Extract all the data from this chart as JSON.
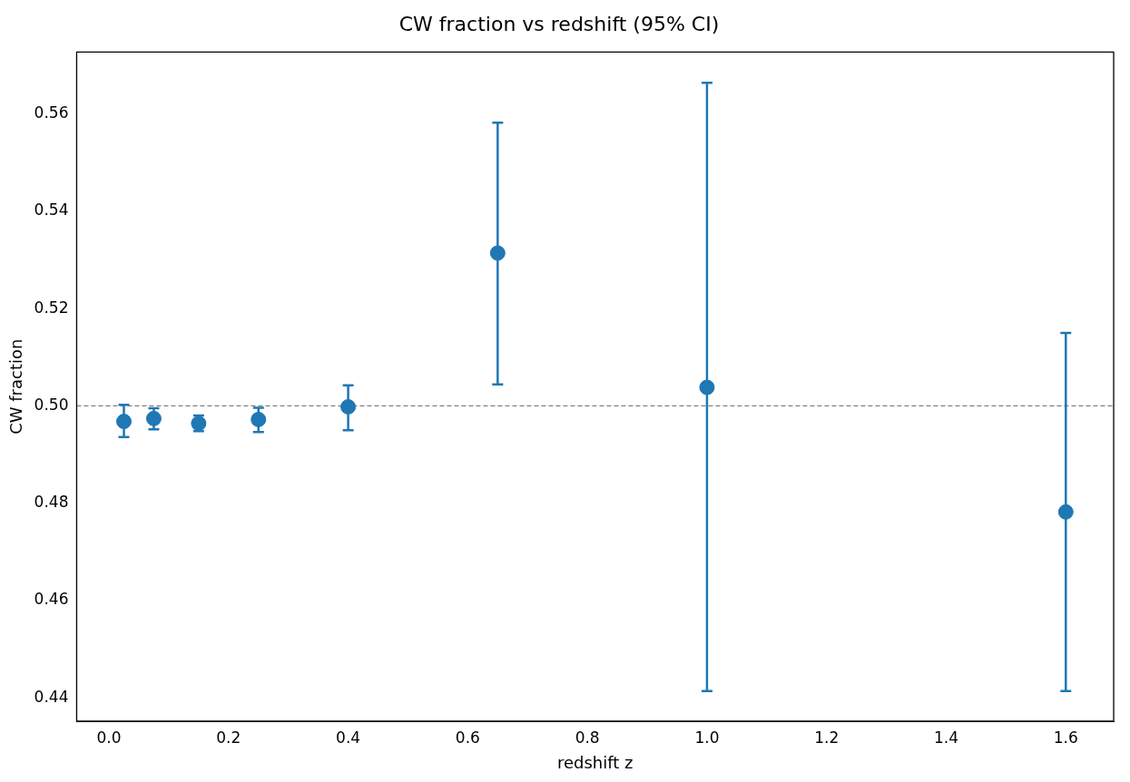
{
  "chart_data": {
    "type": "scatter",
    "title": "CW fraction vs redshift (95% CI)",
    "xlabel": "redshift z",
    "ylabel": "CW fraction",
    "x": [
      0.025,
      0.075,
      0.15,
      0.25,
      0.4,
      0.65,
      1.0,
      1.6
    ],
    "values": [
      0.4968,
      0.4974,
      0.4964,
      0.4972,
      0.4998,
      0.5314,
      0.5038,
      0.4782
    ],
    "errors": [
      [
        0.4936,
        0.5002
      ],
      [
        0.4952,
        0.4995
      ],
      [
        0.4948,
        0.498
      ],
      [
        0.4946,
        0.4996
      ],
      [
        0.495,
        0.5042
      ],
      [
        0.5044,
        0.5582
      ],
      [
        0.4414,
        0.5664
      ],
      [
        0.4414,
        0.515
      ]
    ],
    "color": "#1f77b4",
    "marker": "circle",
    "xlim": [
      -0.054,
      1.68
    ],
    "xticks": [
      {
        "value": 0,
        "label": "0.0"
      },
      0.2,
      0.4,
      0.6,
      0.8,
      {
        "value": 1,
        "label": "1.0"
      },
      1.2,
      1.4,
      1.6
    ],
    "ylim": [
      0.4352,
      0.5727
    ],
    "yticks": [
      0.44,
      0.46,
      0.48,
      {
        "value": 0.5,
        "label": "0.50"
      },
      0.52,
      0.54,
      0.56
    ],
    "ref_lines": [
      {
        "axis": "y",
        "value": 0.5,
        "color": "#808080",
        "line_style": "dashed"
      }
    ],
    "grid": false,
    "legend": false
  }
}
